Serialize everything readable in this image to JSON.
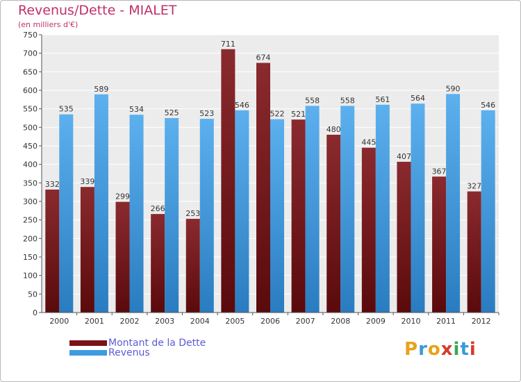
{
  "title": "Revenus/Dette - MIALET",
  "subtitle": "(en milliers d'€)",
  "chart_data": {
    "type": "bar",
    "categories": [
      "2000",
      "2001",
      "2002",
      "2003",
      "2004",
      "2005",
      "2006",
      "2007",
      "2008",
      "2009",
      "2010",
      "2011",
      "2012"
    ],
    "series": [
      {
        "name": "Montant de la Dette",
        "color": "#7a1418",
        "values": [
          332,
          339,
          299,
          266,
          253,
          711,
          674,
          521,
          480,
          445,
          407,
          367,
          327
        ]
      },
      {
        "name": "Revenus",
        "color": "#3f9be0",
        "values": [
          535,
          589,
          534,
          525,
          523,
          546,
          522,
          558,
          558,
          561,
          564,
          590,
          546
        ]
      }
    ],
    "ylim": [
      0,
      750
    ],
    "yticks": [
      0,
      50,
      100,
      150,
      200,
      250,
      300,
      350,
      400,
      450,
      500,
      550,
      600,
      650,
      700,
      750
    ],
    "grid": true,
    "legend": "bottom-left"
  },
  "legend": {
    "items": [
      {
        "label": "Montant de la Dette",
        "color": "#7a1418"
      },
      {
        "label": "Revenus",
        "color": "#3f9be0"
      }
    ]
  },
  "logo": {
    "letters": [
      "P",
      "r",
      "o",
      "x",
      "i",
      "t",
      "i"
    ],
    "colors": [
      "#e8a21a",
      "#3a9ad9",
      "#e8a21a",
      "#d83a2a",
      "#3aa655",
      "#3a9ad9",
      "#d83a2a"
    ]
  }
}
